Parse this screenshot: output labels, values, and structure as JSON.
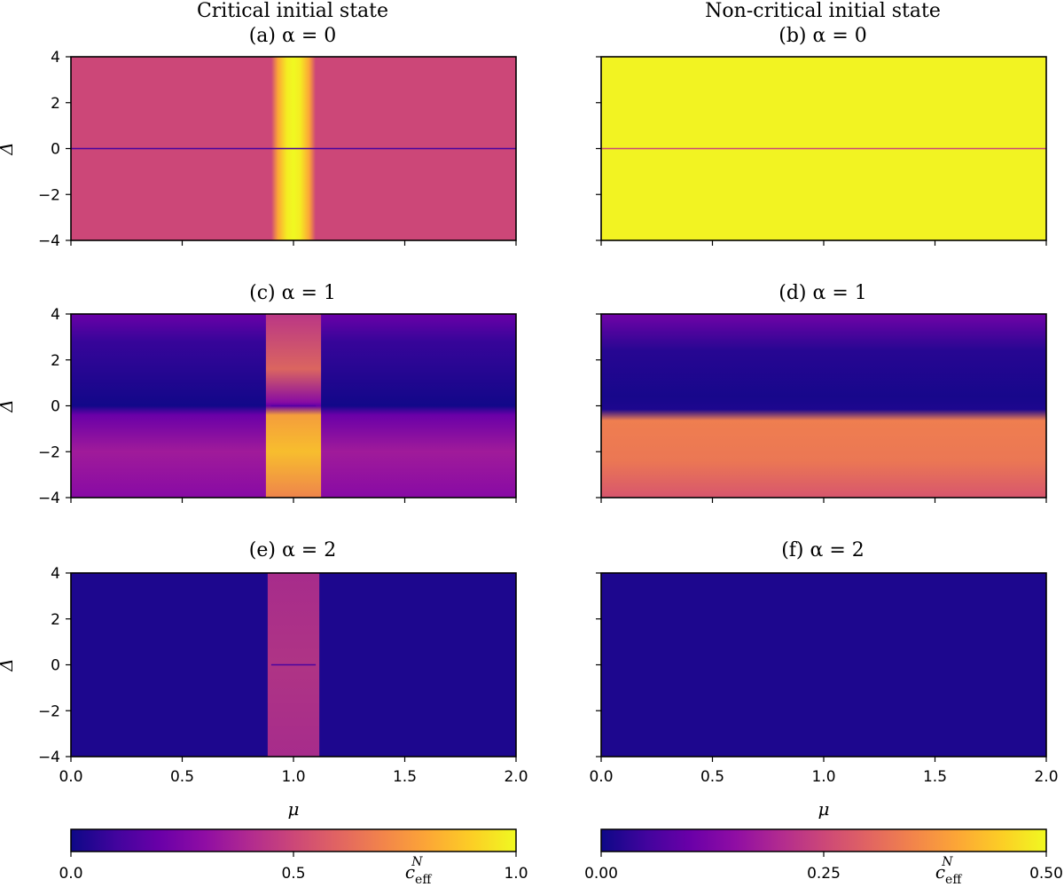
{
  "column_titles": [
    "Critical initial state",
    "Non-critical initial state"
  ],
  "chart_data": [
    {
      "type": "heatmap",
      "title": "(a) α = 0",
      "column": 0,
      "row": 0,
      "alpha": 0,
      "colormap": "plasma",
      "xlim": [
        0.0,
        2.0
      ],
      "ylim": [
        -4,
        4
      ],
      "xlabel": "",
      "ylabel": "Δ",
      "xticks": [
        0.0,
        0.5,
        1.0,
        1.5,
        2.0
      ],
      "yticks": [
        4,
        2,
        0,
        -2,
        -4
      ],
      "show_x_tick_labels": false,
      "show_y_tick_labels": true
    },
    {
      "type": "heatmap",
      "title": "(b) α = 0",
      "column": 1,
      "row": 0,
      "alpha": 0,
      "colormap": "plasma",
      "xlim": [
        0.0,
        2.0
      ],
      "ylim": [
        -4,
        4
      ],
      "xlabel": "",
      "ylabel": "",
      "xticks": [
        0.0,
        0.5,
        1.0,
        1.5,
        2.0
      ],
      "yticks": [
        4,
        2,
        0,
        -2,
        -4
      ],
      "show_x_tick_labels": false,
      "show_y_tick_labels": false
    },
    {
      "type": "heatmap",
      "title": "(c) α = 1",
      "column": 0,
      "row": 1,
      "alpha": 1,
      "colormap": "plasma",
      "xlim": [
        0.0,
        2.0
      ],
      "ylim": [
        -4,
        4
      ],
      "xlabel": "",
      "ylabel": "Δ",
      "xticks": [
        0.0,
        0.5,
        1.0,
        1.5,
        2.0
      ],
      "yticks": [
        4,
        2,
        0,
        -2,
        -4
      ],
      "show_x_tick_labels": false,
      "show_y_tick_labels": true
    },
    {
      "type": "heatmap",
      "title": "(d) α = 1",
      "column": 1,
      "row": 1,
      "alpha": 1,
      "colormap": "plasma",
      "xlim": [
        0.0,
        2.0
      ],
      "ylim": [
        -4,
        4
      ],
      "xlabel": "",
      "ylabel": "",
      "xticks": [
        0.0,
        0.5,
        1.0,
        1.5,
        2.0
      ],
      "yticks": [
        4,
        2,
        0,
        -2,
        -4
      ],
      "show_x_tick_labels": false,
      "show_y_tick_labels": false
    },
    {
      "type": "heatmap",
      "title": "(e) α = 2",
      "column": 0,
      "row": 2,
      "alpha": 2,
      "colormap": "plasma",
      "xlim": [
        0.0,
        2.0
      ],
      "ylim": [
        -4,
        4
      ],
      "xlabel": "μ",
      "ylabel": "Δ",
      "xticks": [
        0.0,
        0.5,
        1.0,
        1.5,
        2.0
      ],
      "yticks": [
        4,
        2,
        0,
        -2,
        -4
      ],
      "show_x_tick_labels": true,
      "show_y_tick_labels": true
    },
    {
      "type": "heatmap",
      "title": "(f) α = 2",
      "column": 1,
      "row": 2,
      "alpha": 2,
      "colormap": "plasma",
      "xlim": [
        0.0,
        2.0
      ],
      "ylim": [
        -4,
        4
      ],
      "xlabel": "μ",
      "ylabel": "",
      "xticks": [
        0.0,
        0.5,
        1.0,
        1.5,
        2.0
      ],
      "yticks": [
        4,
        2,
        0,
        -2,
        -4
      ],
      "show_x_tick_labels": true,
      "show_y_tick_labels": false
    }
  ],
  "colorbars": [
    {
      "column": 0,
      "label": "c_eff^N",
      "range": [
        0.0,
        1.0
      ],
      "tick_labels": [
        "0.0",
        "0.5",
        "1.0"
      ],
      "tick_values": [
        0.0,
        0.5,
        1.0
      ]
    },
    {
      "column": 1,
      "label": "c_eff^N",
      "range": [
        0.0,
        0.5
      ],
      "tick_labels": [
        "0.00",
        "0.25",
        "0.50"
      ],
      "tick_values": [
        0.0,
        0.25,
        0.5
      ]
    }
  ],
  "tick_text": {
    "x": [
      "0.0",
      "0.5",
      "1.0",
      "1.5",
      "2.0"
    ],
    "y": [
      "4",
      "2",
      "0",
      "−2",
      "−4"
    ]
  },
  "colorbar_label_main": "c",
  "colorbar_label_sub": "eff",
  "colorbar_label_sup": "N"
}
